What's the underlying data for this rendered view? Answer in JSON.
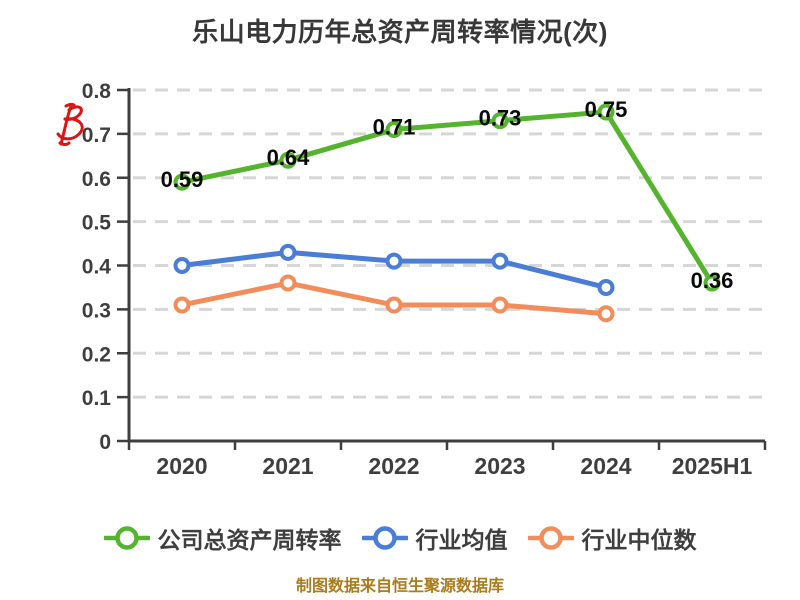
{
  "title": "乐山电力历年总资产周转率情况(次)",
  "watermark": {
    "icon": "red-scribble-b-watermark",
    "color": "#DD1414"
  },
  "chart_data": {
    "type": "line",
    "title": "乐山电力历年总资产周转率情况(次)",
    "categories": [
      "2020",
      "2021",
      "2022",
      "2023",
      "2024",
      "2025H1"
    ],
    "series": [
      {
        "name": "公司总资产周转率",
        "color": "#55B42E",
        "values": [
          0.59,
          0.64,
          0.71,
          0.73,
          0.75,
          0.36
        ],
        "point_labels": [
          "0.59",
          "0.64",
          "0.71",
          "0.73",
          "0.75",
          "0.36"
        ]
      },
      {
        "name": "行业均值",
        "color": "#4A7DD6",
        "values": [
          0.4,
          0.43,
          0.41,
          0.41,
          0.35,
          null
        ],
        "point_labels": null
      },
      {
        "name": "行业中位数",
        "color": "#F28C5A",
        "values": [
          0.31,
          0.36,
          0.31,
          0.31,
          0.29,
          null
        ],
        "point_labels": null
      }
    ],
    "ylim": [
      0,
      0.8
    ],
    "yticks": [
      0,
      0.1,
      0.2,
      0.3,
      0.4,
      0.5,
      0.6,
      0.7,
      0.8
    ],
    "ytick_labels": [
      "0",
      "0.1",
      "0.2",
      "0.3",
      "0.4",
      "0.5",
      "0.6",
      "0.7",
      "0.8"
    ],
    "grid": "horizontal-dashed",
    "grid_color": "#D6D6D6",
    "axis_color": "#3E3E3E",
    "point_label_color": "#0A0A0A",
    "marker_style": "white-filled-circle",
    "legend_position": "bottom"
  },
  "legend": {
    "items": [
      {
        "label": "公司总资产周转率"
      },
      {
        "label": "行业均值"
      },
      {
        "label": "行业中位数"
      }
    ]
  },
  "caption": {
    "text": "制图数据来自恒生聚源数据库",
    "color": "#A97C1C"
  }
}
